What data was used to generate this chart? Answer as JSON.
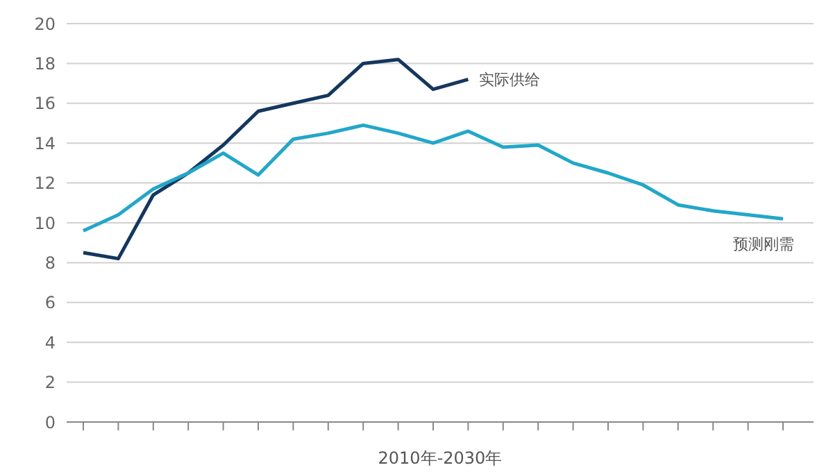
{
  "chart_data": {
    "type": "line",
    "xlabel": "2010年-2030年",
    "categories": [
      null,
      null,
      null,
      null,
      null,
      null,
      null,
      null,
      null,
      null,
      null,
      null,
      null,
      null,
      null,
      null,
      null,
      null,
      null,
      null,
      null
    ],
    "series": [
      {
        "name": "实际供给",
        "color": "#14375e",
        "values": [
          8.5,
          8.2,
          11.4,
          12.5,
          13.9,
          15.6,
          16.0,
          16.4,
          18.0,
          18.2,
          16.7,
          17.2,
          null,
          null,
          null,
          null,
          null,
          null,
          null,
          null,
          null
        ]
      },
      {
        "name": "预测刚需",
        "color": "#22a7c9",
        "values": [
          9.6,
          10.4,
          11.7,
          12.5,
          13.5,
          12.4,
          14.2,
          14.5,
          14.9,
          14.5,
          14.0,
          14.6,
          13.8,
          13.9,
          13.0,
          12.5,
          11.9,
          10.9,
          10.6,
          10.4,
          10.2
        ]
      }
    ],
    "ylim": [
      0,
      20
    ],
    "yticks": [
      0,
      2,
      4,
      6,
      8,
      10,
      12,
      14,
      16,
      18,
      20
    ],
    "grid": "y",
    "marker": "none",
    "line_style": "solid"
  }
}
